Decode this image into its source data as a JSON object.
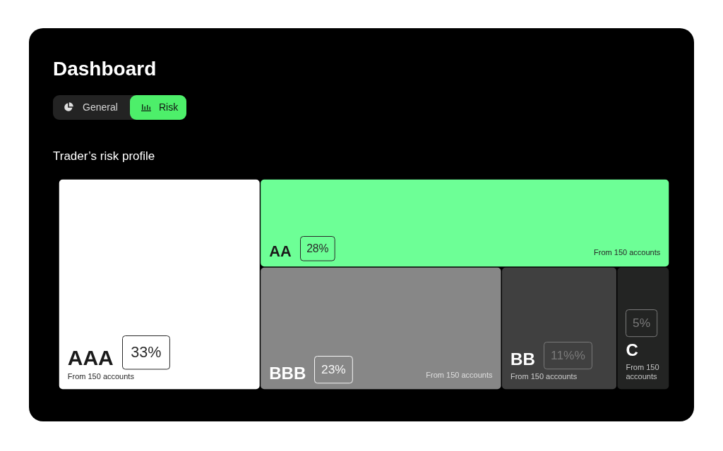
{
  "chart_data": {
    "type": "other",
    "title": "Dashboard",
    "subtitle": "Trader’s risk profile",
    "categories": [
      "AAA",
      "AA",
      "BBB",
      "BB",
      "C"
    ],
    "values": [
      33,
      28,
      23,
      11,
      5
    ],
    "value_labels": [
      "33%",
      "28%",
      "23%",
      "11%%",
      "5%"
    ],
    "colors": [
      "#ffffff",
      "#6dff96",
      "#878787",
      "#404040",
      "#232423"
    ],
    "annotations": [
      {
        "text": "From 150 accounts",
        "x": "AAA"
      },
      {
        "text": "From 150 accounts",
        "x": "AA"
      },
      {
        "text": "From 150 accounts",
        "x": "BBB"
      },
      {
        "text": "From 150 accounts",
        "x": "BB"
      },
      {
        "text": "From 150 accounts",
        "x": "C"
      },
      "General",
      "Risk"
    ]
  }
}
